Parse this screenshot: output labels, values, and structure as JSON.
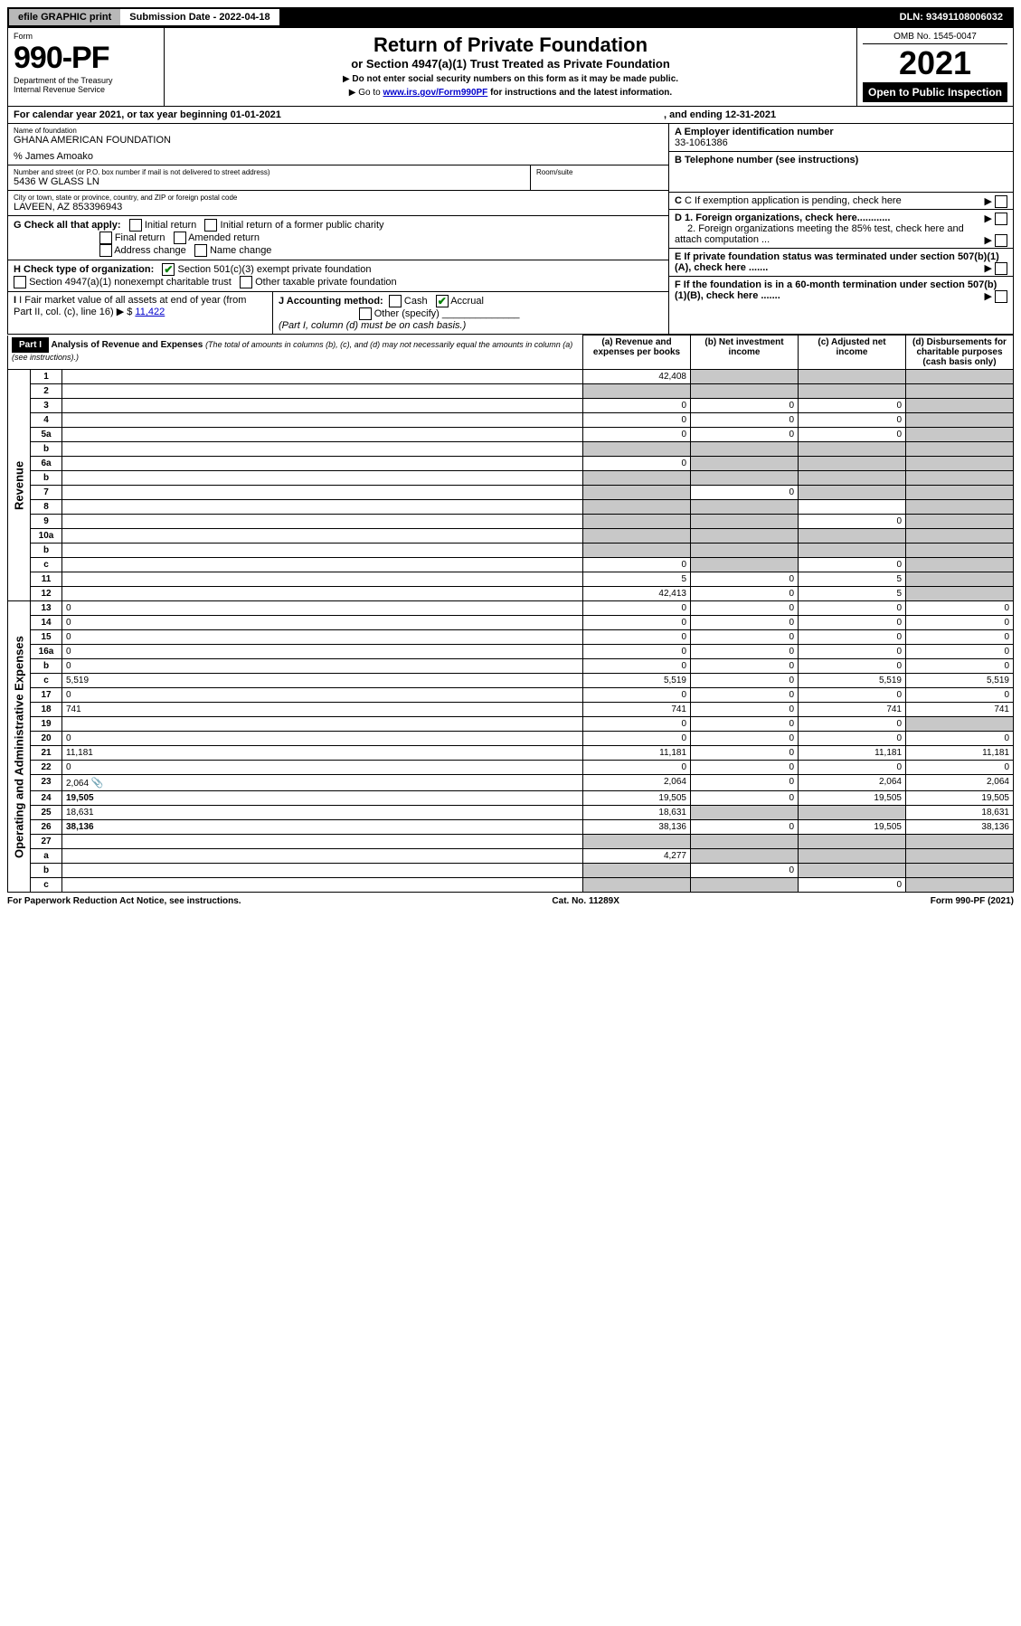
{
  "topbar": {
    "efile": "efile GRAPHIC print",
    "subdate_label": "Submission Date - 2022-04-18",
    "dln": "DLN: 93491108006032"
  },
  "header": {
    "form_label": "Form",
    "form_no": "990-PF",
    "dept": "Department of the Treasury",
    "irs": "Internal Revenue Service",
    "title": "Return of Private Foundation",
    "subtitle": "or Section 4947(a)(1) Trust Treated as Private Foundation",
    "instr1": "Do not enter social security numbers on this form as it may be made public.",
    "instr2_pre": "Go to ",
    "instr2_link": "www.irs.gov/Form990PF",
    "instr2_post": " for instructions and the latest information.",
    "omb": "OMB No. 1545-0047",
    "year": "2021",
    "open": "Open to Public Inspection"
  },
  "calendar": {
    "line": "For calendar year 2021, or tax year beginning 01-01-2021",
    "ending": ", and ending 12-31-2021"
  },
  "name_block": {
    "name_label": "Name of foundation",
    "name": "GHANA AMERICAN FOUNDATION",
    "care_of": "% James Amoako",
    "addr_label": "Number and street (or P.O. box number if mail is not delivered to street address)",
    "addr": "5436 W GLASS LN",
    "room_label": "Room/suite",
    "city_label": "City or town, state or province, country, and ZIP or foreign postal code",
    "city": "LAVEEN, AZ  853396943"
  },
  "right_block": {
    "a_label": "A Employer identification number",
    "a_val": "33-1061386",
    "b_label": "B Telephone number (see instructions)",
    "c_label": "C If exemption application is pending, check here",
    "d1": "D 1. Foreign organizations, check here............",
    "d2": "2. Foreign organizations meeting the 85% test, check here and attach computation ...",
    "e": "E  If private foundation status was terminated under section 507(b)(1)(A), check here .......",
    "f": "F  If the foundation is in a 60-month termination under section 507(b)(1)(B), check here .......",
    "arrow_mark": "▶"
  },
  "g_block": {
    "label": "G Check all that apply:",
    "opts": [
      "Initial return",
      "Initial return of a former public charity",
      "Final return",
      "Amended return",
      "Address change",
      "Name change"
    ]
  },
  "h_block": {
    "label": "H Check type of organization:",
    "opt1": "Section 501(c)(3) exempt private foundation",
    "opt2": "Section 4947(a)(1) nonexempt charitable trust",
    "opt3": "Other taxable private foundation"
  },
  "i_block": {
    "label": "I Fair market value of all assets at end of year (from Part II, col. (c), line 16)",
    "prefix": "▶ $",
    "val": "11,422"
  },
  "j_block": {
    "label": "J Accounting method:",
    "cash": "Cash",
    "accrual": "Accrual",
    "other": "Other (specify)",
    "note": "(Part I, column (d) must be on cash basis.)"
  },
  "part1": {
    "label": "Part I",
    "title": "Analysis of Revenue and Expenses",
    "title_note": "(The total of amounts in columns (b), (c), and (d) may not necessarily equal the amounts in column (a) (see instructions).)",
    "col_a": "(a)   Revenue and expenses per books",
    "col_b": "(b)   Net investment income",
    "col_c": "(c)   Adjusted net income",
    "col_d": "(d)   Disbursements for charitable purposes (cash basis only)"
  },
  "side_labels": {
    "revenue": "Revenue",
    "opex": "Operating and Administrative Expenses"
  },
  "rows": [
    {
      "n": "1",
      "d": "",
      "a": "42,408",
      "b": "",
      "c": "",
      "grey_b": true,
      "grey_c": true,
      "grey_d": true
    },
    {
      "n": "2",
      "d": "",
      "a": "",
      "b": "",
      "c": "",
      "grey_a": true,
      "grey_b": true,
      "grey_c": true,
      "grey_d": true
    },
    {
      "n": "3",
      "d": "",
      "a": "0",
      "b": "0",
      "c": "0",
      "grey_d": true
    },
    {
      "n": "4",
      "d": "",
      "a": "0",
      "b": "0",
      "c": "0",
      "grey_d": true
    },
    {
      "n": "5a",
      "d": "",
      "a": "0",
      "b": "0",
      "c": "0",
      "grey_d": true
    },
    {
      "n": "b",
      "d": "",
      "a": "",
      "b": "",
      "c": "",
      "grey_a": true,
      "grey_b": true,
      "grey_c": true,
      "grey_d": true
    },
    {
      "n": "6a",
      "d": "",
      "a": "0",
      "b": "",
      "c": "",
      "grey_b": true,
      "grey_c": true,
      "grey_d": true
    },
    {
      "n": "b",
      "d": "",
      "a": "",
      "b": "",
      "c": "",
      "grey_a": true,
      "grey_b": true,
      "grey_c": true,
      "grey_d": true
    },
    {
      "n": "7",
      "d": "",
      "a": "",
      "b": "0",
      "c": "",
      "grey_a": true,
      "grey_c": true,
      "grey_d": true
    },
    {
      "n": "8",
      "d": "",
      "a": "",
      "b": "",
      "c": "",
      "grey_a": true,
      "grey_b": true,
      "grey_d": true
    },
    {
      "n": "9",
      "d": "",
      "a": "",
      "b": "",
      "c": "0",
      "grey_a": true,
      "grey_b": true,
      "grey_d": true
    },
    {
      "n": "10a",
      "d": "",
      "a": "",
      "b": "",
      "c": "",
      "grey_a": true,
      "grey_b": true,
      "grey_c": true,
      "grey_d": true
    },
    {
      "n": "b",
      "d": "",
      "a": "",
      "b": "",
      "c": "",
      "grey_a": true,
      "grey_b": true,
      "grey_c": true,
      "grey_d": true
    },
    {
      "n": "c",
      "d": "",
      "a": "0",
      "b": "",
      "c": "0",
      "grey_b": true,
      "grey_d": true
    },
    {
      "n": "11",
      "d": "",
      "a": "5",
      "b": "0",
      "c": "5",
      "grey_d": true
    },
    {
      "n": "12",
      "d": "",
      "bold": true,
      "a": "42,413",
      "b": "0",
      "c": "5",
      "grey_d": true
    },
    {
      "n": "13",
      "d": "0",
      "a": "0",
      "b": "0",
      "c": "0"
    },
    {
      "n": "14",
      "d": "0",
      "a": "0",
      "b": "0",
      "c": "0"
    },
    {
      "n": "15",
      "d": "0",
      "a": "0",
      "b": "0",
      "c": "0"
    },
    {
      "n": "16a",
      "d": "0",
      "a": "0",
      "b": "0",
      "c": "0"
    },
    {
      "n": "b",
      "d": "0",
      "a": "0",
      "b": "0",
      "c": "0"
    },
    {
      "n": "c",
      "d": "5,519",
      "a": "5,519",
      "b": "0",
      "c": "5,519"
    },
    {
      "n": "17",
      "d": "0",
      "a": "0",
      "b": "0",
      "c": "0"
    },
    {
      "n": "18",
      "d": "741",
      "a": "741",
      "b": "0",
      "c": "741"
    },
    {
      "n": "19",
      "d": "",
      "a": "0",
      "b": "0",
      "c": "0",
      "grey_d": true
    },
    {
      "n": "20",
      "d": "0",
      "a": "0",
      "b": "0",
      "c": "0"
    },
    {
      "n": "21",
      "d": "11,181",
      "a": "11,181",
      "b": "0",
      "c": "11,181"
    },
    {
      "n": "22",
      "d": "0",
      "a": "0",
      "b": "0",
      "c": "0"
    },
    {
      "n": "23",
      "d": "2,064",
      "a": "2,064",
      "b": "0",
      "c": "2,064",
      "attach": true
    },
    {
      "n": "24",
      "d": "19,505",
      "bold": true,
      "a": "19,505",
      "b": "0",
      "c": "19,505"
    },
    {
      "n": "25",
      "d": "18,631",
      "a": "18,631",
      "b": "",
      "c": "",
      "grey_b": true,
      "grey_c": true
    },
    {
      "n": "26",
      "d": "38,136",
      "bold": true,
      "a": "38,136",
      "b": "0",
      "c": "19,505"
    },
    {
      "n": "27",
      "d": "",
      "a": "",
      "b": "",
      "c": "",
      "grey_a": true,
      "grey_b": true,
      "grey_c": true,
      "grey_d": true
    },
    {
      "n": "a",
      "d": "",
      "bold": true,
      "a": "4,277",
      "b": "",
      "c": "",
      "grey_b": true,
      "grey_c": true,
      "grey_d": true
    },
    {
      "n": "b",
      "d": "",
      "bold": true,
      "a": "",
      "b": "0",
      "c": "",
      "grey_a": true,
      "grey_c": true,
      "grey_d": true
    },
    {
      "n": "c",
      "d": "",
      "bold": true,
      "a": "",
      "b": "",
      "c": "0",
      "grey_a": true,
      "grey_b": true,
      "grey_d": true
    }
  ],
  "footer": {
    "left": "For Paperwork Reduction Act Notice, see instructions.",
    "mid": "Cat. No. 11289X",
    "right": "Form 990-PF (2021)"
  },
  "colors": {
    "grey": "#c8c8c8",
    "topbar_grey": "#b8b8b8",
    "link": "#0000cc",
    "check_green": "#008000"
  }
}
